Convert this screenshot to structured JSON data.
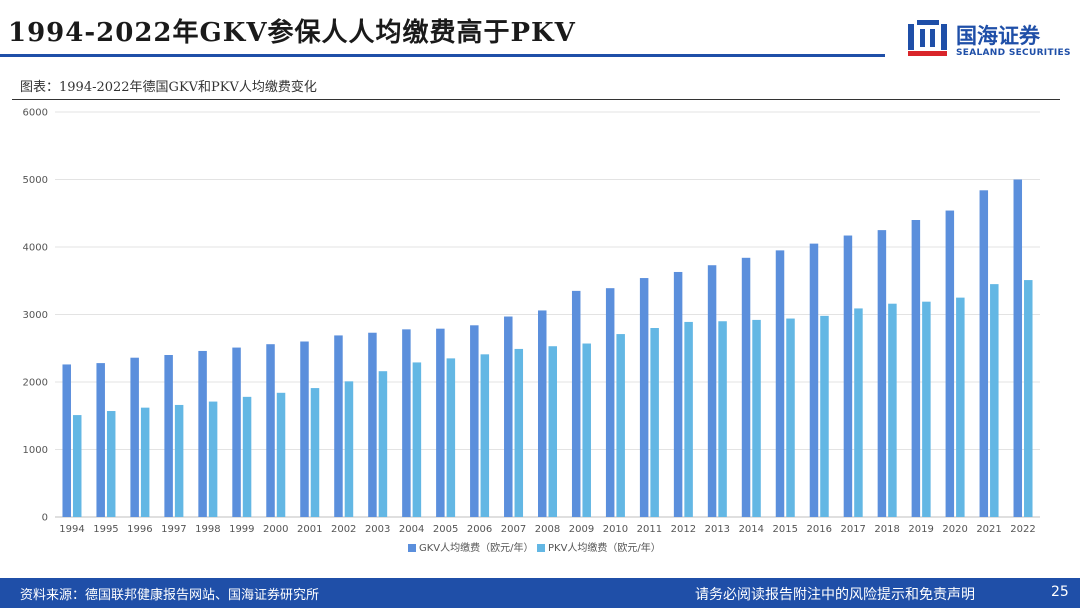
{
  "header": {
    "title": "1994-2022年GKV参保人人均缴费高于PKV",
    "logo_cn": "国海证券",
    "logo_en": "SEALAND SECURITIES"
  },
  "figure": {
    "caption": "图表：1994-2022年德国GKV和PKV人均缴费变化"
  },
  "footer": {
    "source": "资料来源：德国联邦健康报告网站、国海证券研究所",
    "disclaimer": "请务必阅读报告附注中的风险提示和免责声明",
    "page": "25"
  },
  "colors": {
    "gkv": "#5b8fdc",
    "pkv": "#63b7e4",
    "brand": "#1f4fa8",
    "grid": "#e3e3e3"
  },
  "chart_data": {
    "type": "bar",
    "title": "",
    "categories": [
      "1994",
      "1995",
      "1996",
      "1997",
      "1998",
      "1999",
      "2000",
      "2001",
      "2002",
      "2003",
      "2004",
      "2005",
      "2006",
      "2007",
      "2008",
      "2009",
      "2010",
      "2011",
      "2012",
      "2013",
      "2014",
      "2015",
      "2016",
      "2017",
      "2018",
      "2019",
      "2020",
      "2021",
      "2022"
    ],
    "series": [
      {
        "name": "GKV人均缴费（欧元/年）",
        "values": [
          2260,
          2280,
          2360,
          2400,
          2460,
          2510,
          2560,
          2600,
          2690,
          2730,
          2780,
          2790,
          2840,
          2970,
          3060,
          3350,
          3390,
          3540,
          3630,
          3730,
          3840,
          3950,
          4050,
          4170,
          4250,
          4400,
          4540,
          4840,
          5000
        ]
      },
      {
        "name": "PKV人均缴费（欧元/年）",
        "values": [
          1510,
          1570,
          1620,
          1660,
          1710,
          1780,
          1840,
          1910,
          2010,
          2160,
          2290,
          2350,
          2410,
          2490,
          2530,
          2570,
          2710,
          2800,
          2890,
          2900,
          2920,
          2940,
          2980,
          3090,
          3160,
          3190,
          3250,
          3450,
          3510
        ]
      }
    ],
    "yticks": [
      "0",
      "1000",
      "2000",
      "3000",
      "4000",
      "5000",
      "6000"
    ],
    "ylim": [
      0,
      6000
    ],
    "grid": true,
    "legend": "bottom-center",
    "xlabel": "",
    "ylabel": ""
  }
}
